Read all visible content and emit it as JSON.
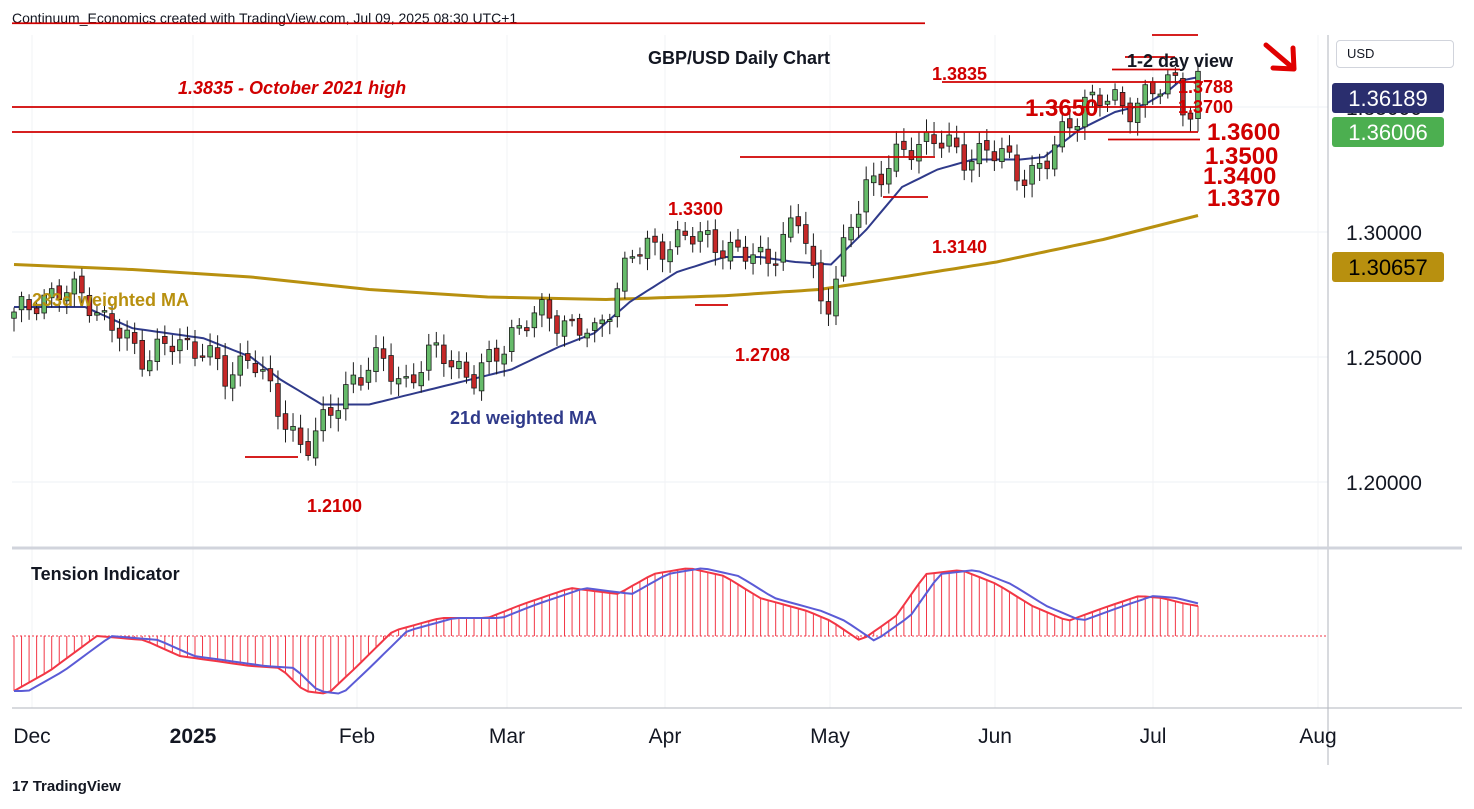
{
  "header": {
    "credit": "Continuum_Economics created with TradingView.com, Jul 09, 2025 08:30 UTC+1"
  },
  "footer": {
    "brand": "TradingView"
  },
  "price_axis": {
    "currency": "USD",
    "ticks": [
      "1.35000",
      "1.30000",
      "1.25000",
      "1.20000"
    ]
  },
  "time_axis": {
    "labels": [
      "Dec",
      "2025",
      "Feb",
      "Mar",
      "Apr",
      "May",
      "Jun",
      "Jul",
      "Aug"
    ]
  },
  "badges": [
    {
      "label": "1.36189",
      "bg": "#2a2e6e",
      "fg": "#ffffff"
    },
    {
      "label": "1.36006",
      "bg": "#4caf50",
      "fg": "#ffffff"
    },
    {
      "label": "1.30657",
      "bg": "#b8900f",
      "fg": "#000000"
    }
  ],
  "colors": {
    "up": "#66bb6a",
    "down": "#c62828",
    "wma21": "#2f3a8a",
    "wma233": "#b8900f",
    "levels": "#d00000",
    "tension_red": "#f23645",
    "tension_blue": "#5b5bd6"
  },
  "chart_data": {
    "type": "candlestick",
    "title": "GBP/USD Daily Chart",
    "subtitle": "1-2 day view",
    "bias": "down-arrow",
    "ylim": [
      1.18,
      1.39
    ],
    "x_range": [
      "2024-11-26",
      "2025-08-04"
    ],
    "levels": [
      {
        "value": 1.3835,
        "label": "1.3835",
        "note": "1.3835 - October 2021 high"
      },
      {
        "value": 1.3788,
        "label": "1.3788"
      },
      {
        "value": 1.37,
        "label": "1.3700"
      },
      {
        "value": 1.365,
        "label": "1.3650"
      },
      {
        "value": 1.36,
        "label": "1.3600"
      },
      {
        "value": 1.35,
        "label": "1.3500"
      },
      {
        "value": 1.34,
        "label": "1.3400"
      },
      {
        "value": 1.337,
        "label": "1.3370"
      },
      {
        "value": 1.33,
        "label": "1.3300"
      },
      {
        "value": 1.314,
        "label": "1.3140"
      },
      {
        "value": 1.2708,
        "label": "1.2708"
      },
      {
        "value": 1.21,
        "label": "1.2100"
      }
    ],
    "series": [
      {
        "name": "233d weighted MA",
        "anchors": [
          [
            0,
            1.287
          ],
          [
            0.1,
            1.285
          ],
          [
            0.2,
            1.282
          ],
          [
            0.3,
            1.277
          ],
          [
            0.4,
            1.274
          ],
          [
            0.5,
            1.273
          ],
          [
            0.6,
            1.2745
          ],
          [
            0.68,
            1.277
          ],
          [
            0.75,
            1.282
          ],
          [
            0.83,
            1.288
          ],
          [
            0.92,
            1.297
          ],
          [
            1.0,
            1.3066
          ]
        ]
      },
      {
        "name": "21d weighted MA",
        "anchors": [
          [
            0,
            1.27
          ],
          [
            0.06,
            1.27
          ],
          [
            0.1,
            1.2615
          ],
          [
            0.16,
            1.2575
          ],
          [
            0.2,
            1.25
          ],
          [
            0.225,
            1.241
          ],
          [
            0.26,
            1.231
          ],
          [
            0.3,
            1.231
          ],
          [
            0.36,
            1.238
          ],
          [
            0.42,
            1.245
          ],
          [
            0.46,
            1.254
          ],
          [
            0.49,
            1.2595
          ],
          [
            0.52,
            1.272
          ],
          [
            0.56,
            1.284
          ],
          [
            0.6,
            1.29
          ],
          [
            0.63,
            1.29
          ],
          [
            0.66,
            1.288
          ],
          [
            0.69,
            1.287
          ],
          [
            0.72,
            1.301
          ],
          [
            0.75,
            1.318
          ],
          [
            0.78,
            1.325
          ],
          [
            0.81,
            1.329
          ],
          [
            0.85,
            1.329
          ],
          [
            0.87,
            1.33
          ],
          [
            0.9,
            1.341
          ],
          [
            0.93,
            1.348
          ],
          [
            0.955,
            1.351
          ],
          [
            0.975,
            1.3565
          ],
          [
            0.985,
            1.3605
          ],
          [
            1.0,
            1.3619
          ]
        ]
      }
    ],
    "tension_indicator": {
      "name": "Tension Indicator"
    },
    "annotations": [
      "1.3835 - October 2021 high",
      "233d weighted MA",
      "21d weighted MA"
    ]
  }
}
